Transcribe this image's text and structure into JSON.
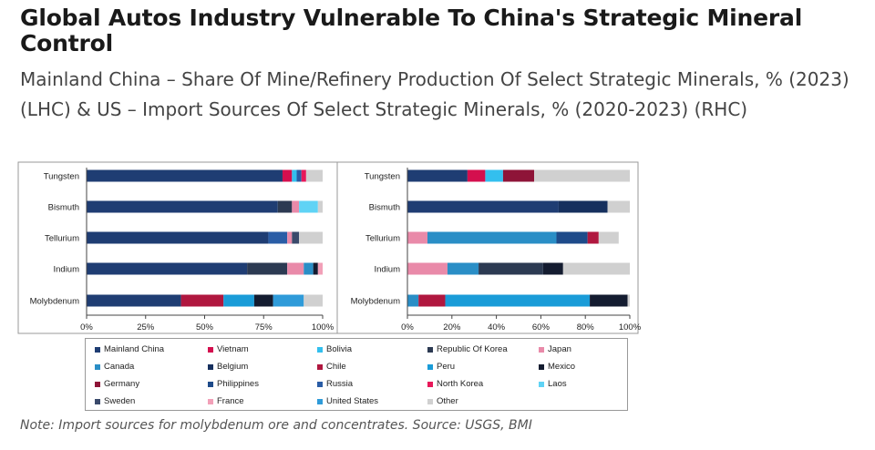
{
  "header": {
    "title": "Global Autos Industry Vulnerable To China's Strategic Mineral Control",
    "subtitle": "Mainland China – Share Of Mine/Refinery Production Of Select Strategic Minerals, % (2023) (LHC) & US – Import Sources Of Select Strategic Minerals, % (2020-2023) (RHC)"
  },
  "note": "Note: Import sources for molybdenum ore and concentrates. Source: USGS, BMI",
  "colors": {
    "Mainland China": "#1f3d73",
    "Vietnam": "#d40f4e",
    "Bolivia": "#33bfee",
    "Republic Of Korea": "#2c3a52",
    "Japan": "#e98aa9",
    "Canada": "#2a8ec6",
    "Belgium": "#16305e",
    "Chile": "#b0173f",
    "Peru": "#1a9cd8",
    "Mexico": "#141c30",
    "Germany": "#8e1438",
    "Philippines": "#1e4b8a",
    "Russia": "#2a5da6",
    "North Korea": "#e8185a",
    "Laos": "#5fd3f5",
    "Sweden": "#3a4a6b",
    "France": "#f2a0b8",
    "United States": "#2f9bd9",
    "Other": "#d0d0d0"
  },
  "legend": [
    "Mainland China",
    "Vietnam",
    "Bolivia",
    "Republic Of Korea",
    "Japan",
    "Canada",
    "Belgium",
    "Chile",
    "Peru",
    "Mexico",
    "Germany",
    "Philippines",
    "Russia",
    "North Korea",
    "Laos",
    "Sweden",
    "France",
    "United States",
    "Other"
  ],
  "chart_data": [
    {
      "type": "bar",
      "orientation": "horizontal",
      "stacked": true,
      "title": "Mainland China – Share Of Mine/Refinery Production (LHC)",
      "categories": [
        "Tungsten",
        "Bismuth",
        "Tellurium",
        "Indium",
        "Molybdenum"
      ],
      "xlim": [
        0,
        100
      ],
      "xticks": [
        "0%",
        "25%",
        "50%",
        "75%",
        "100%"
      ],
      "series": [
        {
          "name": "Mainland China",
          "values": [
            83,
            81,
            77,
            68,
            40
          ]
        },
        {
          "name": "Vietnam",
          "values": [
            4,
            0,
            0,
            0,
            0
          ]
        },
        {
          "name": "Chile",
          "values": [
            0,
            0,
            0,
            0,
            18
          ]
        },
        {
          "name": "Peru",
          "values": [
            0,
            0,
            0,
            0,
            13
          ]
        },
        {
          "name": "Bolivia",
          "values": [
            2,
            0,
            0,
            0,
            0
          ]
        },
        {
          "name": "Russia",
          "values": [
            2,
            0,
            8,
            0,
            0
          ]
        },
        {
          "name": "Republic Of Korea",
          "values": [
            0,
            6,
            0,
            17,
            0
          ]
        },
        {
          "name": "North Korea",
          "values": [
            2,
            0,
            0,
            0,
            0
          ]
        },
        {
          "name": "Japan",
          "values": [
            0,
            3,
            2,
            7,
            0
          ]
        },
        {
          "name": "Sweden",
          "values": [
            0,
            0,
            3,
            0,
            0
          ]
        },
        {
          "name": "Canada",
          "values": [
            0,
            0,
            0,
            4,
            0
          ]
        },
        {
          "name": "Mexico",
          "values": [
            0,
            0,
            0,
            2,
            8
          ]
        },
        {
          "name": "Laos",
          "values": [
            0,
            8,
            0,
            0,
            0
          ]
        },
        {
          "name": "France",
          "values": [
            0,
            0,
            0,
            2,
            0
          ]
        },
        {
          "name": "Germany",
          "values": [
            0,
            0,
            0,
            0,
            0
          ]
        },
        {
          "name": "United States",
          "values": [
            0,
            0,
            0,
            0,
            13
          ]
        },
        {
          "name": "Other",
          "values": [
            7,
            2,
            10,
            0,
            8
          ]
        }
      ]
    },
    {
      "type": "bar",
      "orientation": "horizontal",
      "stacked": true,
      "title": "US – Import Sources (RHC)",
      "categories": [
        "Tungsten",
        "Bismuth",
        "Tellurium",
        "Indium",
        "Molybdenum"
      ],
      "xlim": [
        0,
        100
      ],
      "xticks": [
        "0%",
        "20%",
        "40%",
        "60%",
        "80%",
        "100%"
      ],
      "series": [
        {
          "name": "Mainland China",
          "values": [
            27,
            68,
            0,
            0,
            0
          ]
        },
        {
          "name": "Vietnam",
          "values": [
            8,
            0,
            0,
            0,
            0
          ]
        },
        {
          "name": "Bolivia",
          "values": [
            8,
            0,
            0,
            0,
            0
          ]
        },
        {
          "name": "Germany",
          "values": [
            14,
            0,
            0,
            0,
            0
          ]
        },
        {
          "name": "Belgium",
          "values": [
            0,
            22,
            0,
            0,
            0
          ]
        },
        {
          "name": "Japan",
          "values": [
            0,
            0,
            9,
            18,
            0
          ]
        },
        {
          "name": "Canada",
          "values": [
            0,
            0,
            58,
            14,
            5
          ]
        },
        {
          "name": "Republic Of Korea",
          "values": [
            0,
            0,
            0,
            29,
            0
          ]
        },
        {
          "name": "Chile",
          "values": [
            0,
            0,
            0,
            0,
            12
          ]
        },
        {
          "name": "Peru",
          "values": [
            0,
            0,
            0,
            0,
            65
          ]
        },
        {
          "name": "Vietnam ",
          "values": [
            0,
            0,
            0,
            0,
            0
          ]
        },
        {
          "name": "North Korea",
          "values": [
            0,
            0,
            0,
            0,
            0
          ]
        },
        {
          "name": "Philippines",
          "values": [
            0,
            0,
            14,
            0,
            0
          ]
        },
        {
          "name": "Chile ",
          "values": [
            0,
            0,
            5,
            0,
            0
          ]
        },
        {
          "name": "Mexico",
          "values": [
            0,
            0,
            0,
            9,
            17
          ]
        },
        {
          "name": "Other",
          "values": [
            43,
            10,
            9,
            30,
            1
          ]
        }
      ]
    }
  ]
}
